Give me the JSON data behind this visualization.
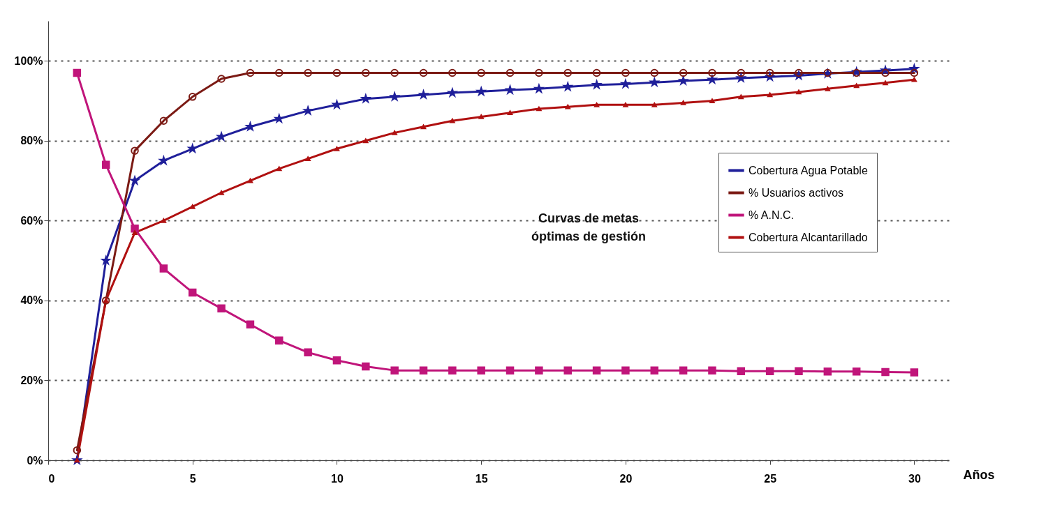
{
  "chart_data": {
    "type": "line",
    "xlabel": "Años",
    "x": [
      1,
      2,
      3,
      4,
      5,
      6,
      7,
      8,
      9,
      10,
      11,
      12,
      13,
      14,
      15,
      16,
      17,
      18,
      19,
      20,
      21,
      22,
      23,
      24,
      25,
      26,
      27,
      28,
      29,
      30
    ],
    "series": [
      {
        "name": "Cobertura Agua Potable",
        "color": "#1f1f9a",
        "marker": "star",
        "values": [
          0,
          50,
          70,
          75,
          78,
          81,
          83.5,
          85.5,
          87.5,
          89,
          90.5,
          91,
          91.5,
          92,
          92.3,
          92.7,
          93,
          93.5,
          94,
          94.2,
          94.6,
          95,
          95.3,
          95.7,
          96,
          96.3,
          96.8,
          97.2,
          97.6,
          98
        ]
      },
      {
        "name": "% Usuarios activos",
        "color": "#7b1a14",
        "marker": "circle",
        "values": [
          2.5,
          40,
          77.5,
          85,
          91,
          95.5,
          97,
          97,
          97,
          97,
          97,
          97,
          97,
          97,
          97,
          97,
          97,
          97,
          97,
          97,
          97,
          97,
          97,
          97,
          97,
          97,
          97,
          97,
          97,
          97
        ]
      },
      {
        "name": "% A.N.C.",
        "color": "#c0157a",
        "marker": "square",
        "values": [
          97,
          74,
          58,
          48,
          42,
          38,
          34,
          30,
          27,
          25,
          23.5,
          22.5,
          22.5,
          22.5,
          22.5,
          22.5,
          22.5,
          22.5,
          22.5,
          22.5,
          22.5,
          22.5,
          22.5,
          22.3,
          22.3,
          22.3,
          22.2,
          22.2,
          22.1,
          22
        ]
      },
      {
        "name": "Cobertura Alcantarillado",
        "color": "#b01010",
        "marker": "triangle",
        "values": [
          0,
          40,
          57,
          60,
          63.5,
          67,
          70,
          73,
          75.5,
          78,
          80,
          82,
          83.5,
          85,
          86,
          87,
          88,
          88.5,
          89,
          89,
          89,
          89.5,
          90,
          91,
          91.5,
          92.2,
          93,
          93.8,
          94.5,
          95.3
        ]
      }
    ],
    "xlim": [
      0,
      31.2
    ],
    "xticks": [
      0,
      5,
      10,
      15,
      20,
      25,
      30
    ],
    "ylim": [
      0,
      110
    ],
    "yticks": [
      {
        "value": 0,
        "label": "0%"
      },
      {
        "value": 20,
        "label": "20%"
      },
      {
        "value": 40,
        "label": "40%"
      },
      {
        "value": 60,
        "label": "60%"
      },
      {
        "value": 80,
        "label": "80%"
      },
      {
        "value": 100,
        "label": "100%"
      }
    ],
    "grid": "y",
    "legend": "right",
    "line_style": "solid",
    "annotations": [
      "Curvas de metas óptimas de gestión"
    ]
  }
}
